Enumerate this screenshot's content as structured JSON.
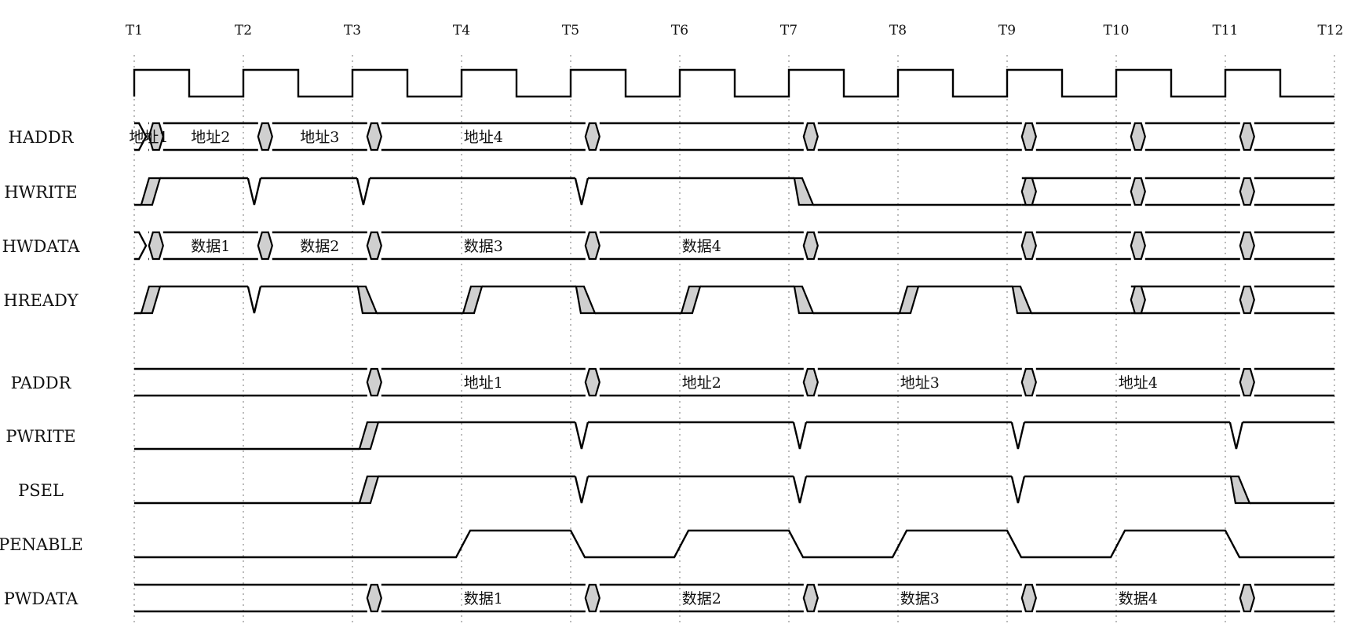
{
  "ticks": [
    "T1",
    "T2",
    "T3",
    "T4",
    "T5",
    "T6",
    "T7",
    "T8",
    "T9",
    "T10",
    "T11",
    "T12"
  ],
  "signals": [
    {
      "name": "HADDR",
      "type": "bus",
      "transitions": [
        1.2,
        2.2,
        3.2,
        5.2,
        7.2,
        9.2,
        10.2,
        11.2
      ],
      "labels": {
        "1": "地址1",
        "2": "地址2",
        "3": "地址3",
        "4": "地址4"
      }
    },
    {
      "name": "HWRITE",
      "type": "bit",
      "init": "low",
      "events": [
        {
          "t": 1.1,
          "e": "rise"
        },
        {
          "t": 2.1,
          "e": "pulse"
        },
        {
          "t": 3.1,
          "e": "pulse"
        },
        {
          "t": 5.1,
          "e": "pulse"
        },
        {
          "t": 7.1,
          "e": "fall"
        }
      ],
      "bus_from": 9.2,
      "bus_transitions": [
        9.2,
        10.2,
        11.2
      ]
    },
    {
      "name": "HWDATA",
      "type": "bus",
      "transitions": [
        1.2,
        2.2,
        3.2,
        5.2,
        7.2,
        9.2,
        10.2,
        11.2
      ],
      "labels": {
        "2": "数据1",
        "3": "数据2",
        "4": "数据3",
        "5": "数据4"
      }
    },
    {
      "name": "HREADY",
      "type": "bit",
      "init": "low",
      "events": [
        {
          "t": 1.1,
          "e": "rise"
        },
        {
          "t": 2.1,
          "e": "pulse"
        },
        {
          "t": 3.1,
          "e": "fall"
        },
        {
          "t": 4.05,
          "e": "rise"
        },
        {
          "t": 5.1,
          "e": "fall"
        },
        {
          "t": 6.05,
          "e": "rise"
        },
        {
          "t": 7.1,
          "e": "fall"
        },
        {
          "t": 8.05,
          "e": "rise"
        },
        {
          "t": 9.1,
          "e": "fall"
        }
      ],
      "bus_from": 10.2,
      "bus_transitions": [
        10.2,
        11.2
      ]
    },
    {
      "name": "PADDR",
      "type": "bus",
      "start": 1,
      "transitions": [
        3.2,
        5.2,
        7.2,
        9.2,
        11.2
      ],
      "labels": {
        "1": "地址1",
        "2": "地址2",
        "3": "地址3",
        "4": "地址4"
      }
    },
    {
      "name": "PWRITE",
      "type": "bit",
      "init": "low",
      "events": [
        {
          "t": 3.1,
          "e": "rise"
        },
        {
          "t": 5.1,
          "e": "pulse"
        },
        {
          "t": 7.1,
          "e": "pulse"
        },
        {
          "t": 9.1,
          "e": "pulse"
        },
        {
          "t": 11.1,
          "e": "pulse"
        }
      ]
    },
    {
      "name": "PSEL",
      "type": "bit",
      "init": "low",
      "events": [
        {
          "t": 3.1,
          "e": "rise"
        },
        {
          "t": 5.1,
          "e": "pulse"
        },
        {
          "t": 7.1,
          "e": "pulse"
        },
        {
          "t": 9.1,
          "e": "pulse"
        },
        {
          "t": 11.1,
          "e": "fall"
        }
      ]
    },
    {
      "name": "PENABLE",
      "type": "bit",
      "init": "low",
      "events": [
        {
          "t": 3.95,
          "e": "srise"
        },
        {
          "t": 5.0,
          "e": "sfall"
        },
        {
          "t": 5.95,
          "e": "srise"
        },
        {
          "t": 7.0,
          "e": "sfall"
        },
        {
          "t": 7.95,
          "e": "srise"
        },
        {
          "t": 9.0,
          "e": "sfall"
        },
        {
          "t": 9.95,
          "e": "srise"
        },
        {
          "t": 11.0,
          "e": "sfall"
        }
      ]
    },
    {
      "name": "PWDATA",
      "type": "bus",
      "start": 1,
      "transitions": [
        3.2,
        5.2,
        7.2,
        9.2,
        11.2
      ],
      "labels": {
        "1": "数据1",
        "2": "数据2",
        "3": "数据3",
        "4": "数据4"
      }
    }
  ]
}
